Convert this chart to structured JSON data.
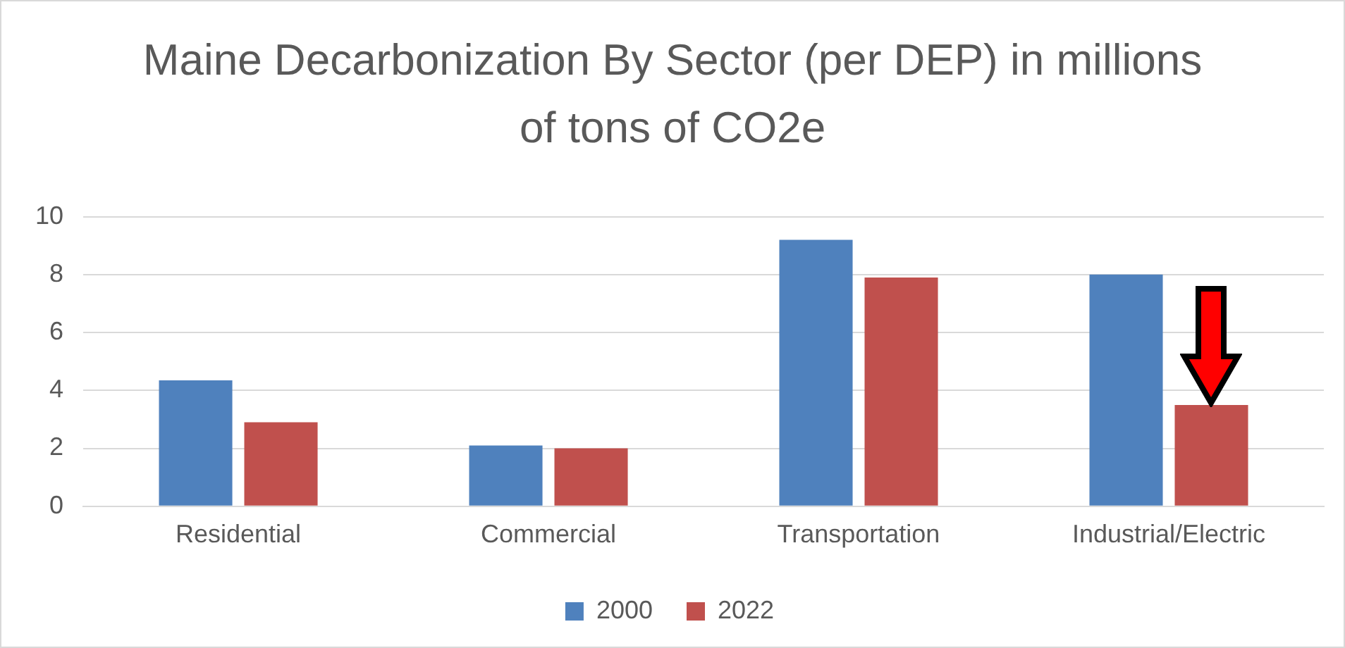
{
  "chart_data": {
    "type": "bar",
    "title": "Maine Decarbonization By Sector (per DEP) in millions of tons of CO2e",
    "categories": [
      "Residential",
      "Commercial",
      "Transportation",
      "Industrial/Electric"
    ],
    "series": [
      {
        "name": "2000",
        "color": "#4f81bd",
        "values": [
          4.35,
          2.1,
          9.2,
          8.0
        ]
      },
      {
        "name": "2022",
        "color": "#c0504d",
        "values": [
          2.9,
          2.0,
          7.9,
          3.5
        ]
      }
    ],
    "ylim": [
      0,
      10
    ],
    "yticks": [
      0,
      2,
      4,
      6,
      8,
      10
    ],
    "grid": "y",
    "legend": "bottom"
  }
}
